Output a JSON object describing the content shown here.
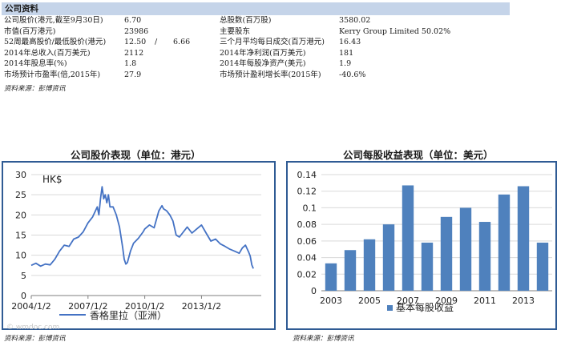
{
  "company_info": {
    "title": "公司资料",
    "rows": [
      {
        "label": "公司股价(港元,截至9月30日)",
        "value": "6.70",
        "label2": "总股数(百万股)",
        "value2": "3580.02"
      },
      {
        "label": "市值(百万港元)",
        "value": "23986",
        "label2": "主要股东",
        "value2": "Kerry Group Limited 50.02%"
      },
      {
        "label": "52周最高股价/最低股价(港元)",
        "value": "12.50",
        "sep": "/",
        "value_b": "6.66",
        "label2": "三个月平均每日成交(百万港元)",
        "value2": "16.43"
      },
      {
        "label": "2014年总收入(百万美元)",
        "value": "2112",
        "label2": "2014年净利润(百万美元)",
        "value2": "181"
      },
      {
        "label": "2014年股息率(%)",
        "value": "1.8",
        "label2": "2014年每股净资产(美元)",
        "value2": "1.9"
      },
      {
        "label": "市场预计市盈率(倍,2015年)",
        "value": "27.9",
        "label2": "市场预计盈利增长率(2015年)",
        "value2": "-40.6%"
      }
    ],
    "source": "资料来源：彭博资讯"
  },
  "chart_data": [
    {
      "type": "line",
      "title": "公司股价表现（单位：港元）",
      "unit_label": "HK$",
      "yticks": [
        "0",
        "5",
        "10",
        "15",
        "20",
        "25",
        "30"
      ],
      "ylim": [
        0,
        30
      ],
      "xticks": [
        "2004/1/2",
        "2007/1/2",
        "2010/1/2",
        "2013/1/2"
      ],
      "xlim": [
        "2004/1/2",
        "2016/3/1"
      ],
      "series": [
        {
          "name": "香格里拉（亚洲）",
          "color": "#4472c4",
          "points": [
            [
              "2004/1/2",
              7.5
            ],
            [
              "2004/4/1",
              8
            ],
            [
              "2004/7/1",
              7.3
            ],
            [
              "2004/10/1",
              7.8
            ],
            [
              "2005/1/1",
              7.6
            ],
            [
              "2005/4/1",
              9
            ],
            [
              "2005/7/1",
              11
            ],
            [
              "2005/10/1",
              12.5
            ],
            [
              "2006/1/1",
              12.2
            ],
            [
              "2006/4/1",
              14
            ],
            [
              "2006/7/1",
              14.5
            ],
            [
              "2006/10/1",
              15.8
            ],
            [
              "2007/1/1",
              18
            ],
            [
              "2007/4/1",
              19.5
            ],
            [
              "2007/7/1",
              22
            ],
            [
              "2007/8/1",
              20
            ],
            [
              "2007/9/1",
              24
            ],
            [
              "2007/10/1",
              27
            ],
            [
              "2007/11/1",
              24
            ],
            [
              "2007/12/1",
              25
            ],
            [
              "2008/1/1",
              23
            ],
            [
              "2008/2/1",
              25
            ],
            [
              "2008/3/1",
              22
            ],
            [
              "2008/5/1",
              22
            ],
            [
              "2008/7/1",
              20
            ],
            [
              "2008/9/1",
              17
            ],
            [
              "2008/11/1",
              12
            ],
            [
              "2008/12/1",
              9
            ],
            [
              "2009/1/1",
              7.8
            ],
            [
              "2009/2/1",
              8.2
            ],
            [
              "2009/4/1",
              11
            ],
            [
              "2009/6/1",
              13
            ],
            [
              "2009/9/1",
              14.2
            ],
            [
              "2009/12/1",
              15.8
            ],
            [
              "2010/1/1",
              16.5
            ],
            [
              "2010/4/1",
              17.5
            ],
            [
              "2010/7/1",
              16.8
            ],
            [
              "2010/10/1",
              21
            ],
            [
              "2010/12/1",
              22.3
            ],
            [
              "2011/1/1",
              21.5
            ],
            [
              "2011/3/1",
              21
            ],
            [
              "2011/5/1",
              20
            ],
            [
              "2011/7/1",
              18.5
            ],
            [
              "2011/9/1",
              15
            ],
            [
              "2011/11/1",
              14.5
            ],
            [
              "2012/1/1",
              15.5
            ],
            [
              "2012/4/1",
              17
            ],
            [
              "2012/7/1",
              15.5
            ],
            [
              "2012/10/1",
              16.5
            ],
            [
              "2013/1/1",
              17.5
            ],
            [
              "2013/4/1",
              15.5
            ],
            [
              "2013/7/1",
              13.5
            ],
            [
              "2013/10/1",
              14
            ],
            [
              "2014/1/1",
              12.8
            ],
            [
              "2014/4/1",
              12.2
            ],
            [
              "2014/7/1",
              11.5
            ],
            [
              "2014/10/1",
              11
            ],
            [
              "2015/1/1",
              10.5
            ],
            [
              "2015/3/1",
              11.8
            ],
            [
              "2015/5/1",
              12.5
            ],
            [
              "2015/7/1",
              10.8
            ],
            [
              "2015/8/1",
              9.8
            ],
            [
              "2015/9/1",
              7.6
            ],
            [
              "2015/9/30",
              6.7
            ]
          ]
        }
      ],
      "source": "资料来源：彭博资讯"
    },
    {
      "type": "bar",
      "title": "公司每股收益表现（单位：美元）",
      "categories": [
        "2003",
        "2004",
        "2005",
        "2006",
        "2007",
        "2008",
        "2009",
        "2010",
        "2011",
        "2012",
        "2013",
        "2014"
      ],
      "xtick_labels": [
        "2003",
        "2005",
        "2007",
        "2009",
        "2011",
        "2013"
      ],
      "yticks": [
        "0",
        "0.02",
        "0.04",
        "0.06",
        "0.08",
        "0.1",
        "0.12",
        "0.14"
      ],
      "ylim": [
        0,
        0.14
      ],
      "series": [
        {
          "name": "基本每股收益",
          "color": "#4f81bd",
          "values": [
            0.033,
            0.049,
            0.062,
            0.08,
            0.127,
            0.058,
            0.089,
            0.1,
            0.083,
            0.116,
            0.126,
            0.058
          ]
        }
      ],
      "source": "资料来源：彭博资讯"
    }
  ],
  "watermark": "© wmdoc.com"
}
